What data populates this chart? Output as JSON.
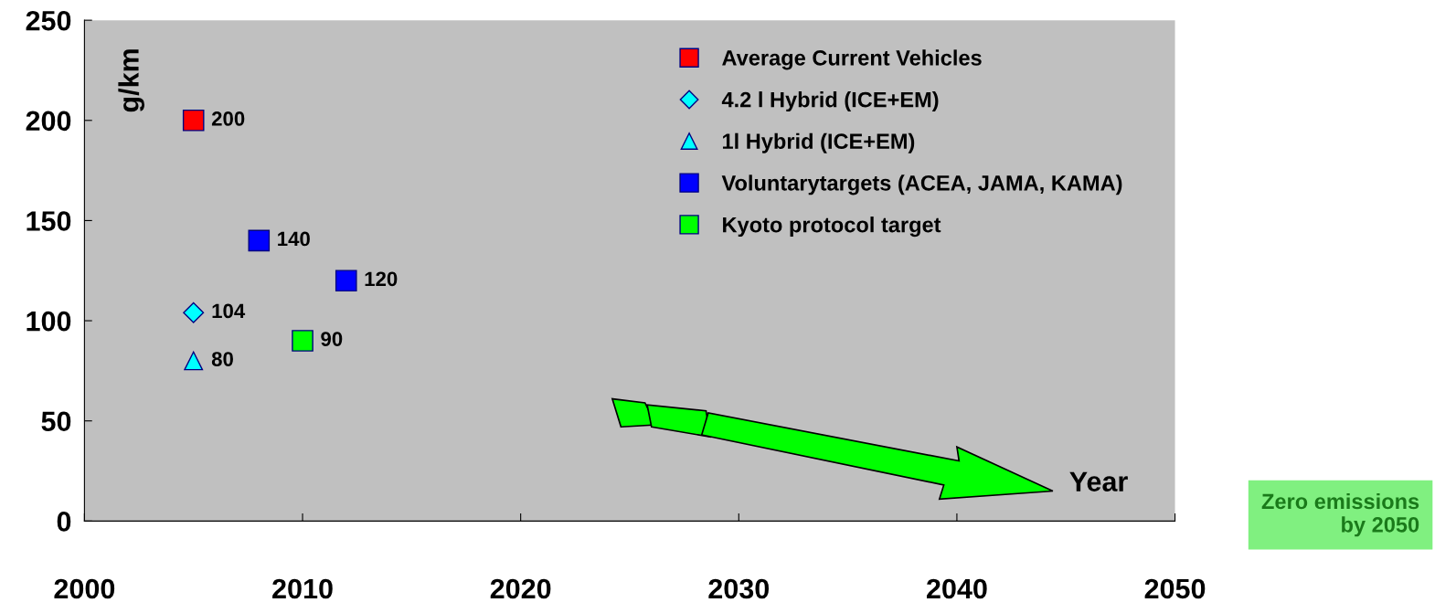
{
  "chart_data": {
    "type": "scatter",
    "ylabel": "g/km",
    "xlabel": "Year",
    "xlim": [
      2000,
      2050
    ],
    "xticks": [
      2000,
      2010,
      2020,
      2030,
      2040,
      2050
    ],
    "ylim": [
      0,
      250
    ],
    "yticks": [
      0,
      50,
      100,
      150,
      200,
      250
    ],
    "grid": false,
    "legend": "top right",
    "data_labels": true,
    "series": [
      {
        "name": "Average Current Vehicles",
        "color": "#ff0000",
        "marker": "square",
        "x": [
          2005
        ],
        "values": [
          200
        ]
      },
      {
        "name": "4.2 l Hybrid (ICE+EM)",
        "color": "#00ffff",
        "marker": "diamond",
        "x": [
          2005
        ],
        "values": [
          104
        ]
      },
      {
        "name": "1l Hybrid (ICE+EM)",
        "color": "#00ffff",
        "marker": "triangle",
        "x": [
          2005
        ],
        "values": [
          80
        ]
      },
      {
        "name": "Voluntarytargets (ACEA, JAMA, KAMA)",
        "color": "#0000ff",
        "marker": "square",
        "x": [
          2008,
          2012
        ],
        "values": [
          140,
          120
        ]
      },
      {
        "name": "Kyoto protocol target",
        "color": "#00ff00",
        "marker": "square",
        "x": [
          2010
        ],
        "values": [
          90
        ]
      }
    ],
    "annotations": [
      "Zero emissions\nby 2050"
    ]
  }
}
